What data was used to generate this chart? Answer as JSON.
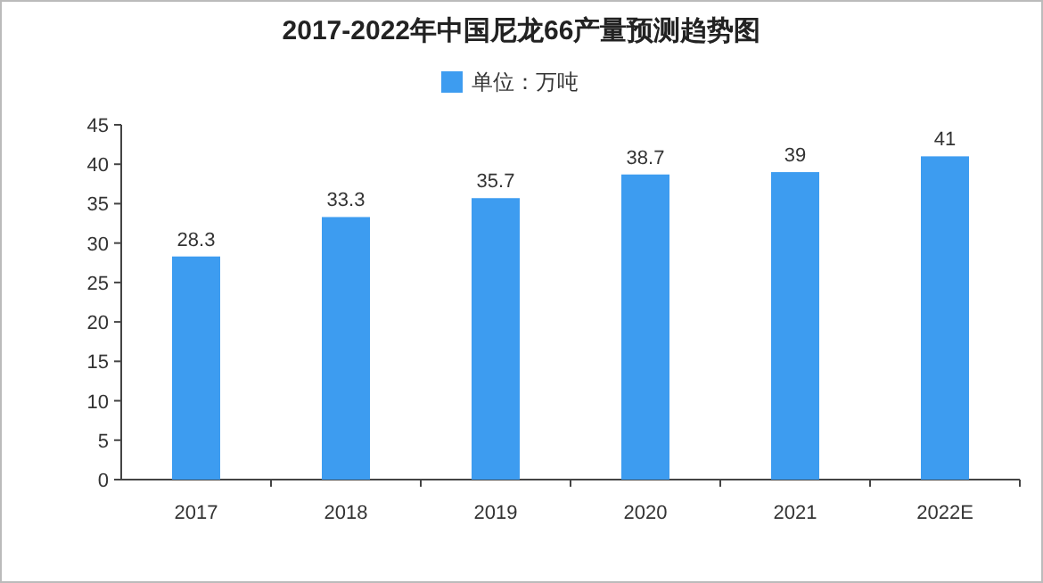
{
  "chart_data": {
    "type": "bar",
    "title": "2017-2022年中国尼龙66产量预测趋势图",
    "categories": [
      "2017",
      "2018",
      "2019",
      "2020",
      "2021",
      "2022E"
    ],
    "series": [
      {
        "name": "单位：万吨",
        "color": "#3d9cf0",
        "values": [
          28.3,
          33.3,
          35.7,
          38.7,
          39,
          41
        ]
      }
    ],
    "ylim": [
      0,
      45
    ],
    "yticks": [
      0,
      5,
      10,
      15,
      20,
      25,
      30,
      35,
      40,
      45
    ],
    "data_labels": true,
    "legend": "top",
    "grid": false
  }
}
